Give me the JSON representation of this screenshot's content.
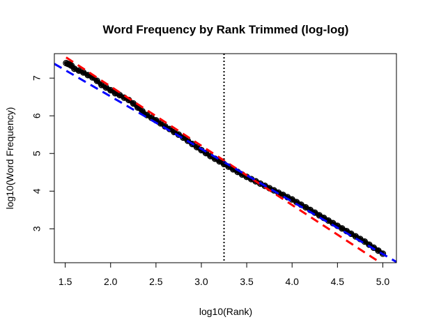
{
  "chart_data": {
    "type": "scatter",
    "title": "Word Frequency by Rank Trimmed (log-log)",
    "xlabel": "log10(Rank)",
    "ylabel": "log10(Word Frequency)",
    "xlim": [
      1.38,
      5.15
    ],
    "ylim": [
      2.1,
      7.65
    ],
    "log_scale": false,
    "grid": false,
    "legend": "none",
    "x_ticks": [
      1.5,
      2.0,
      2.5,
      3.0,
      3.5,
      4.0,
      4.5,
      5.0
    ],
    "x_tick_labels": [
      "1.5",
      "2.0",
      "2.5",
      "3.0",
      "3.5",
      "4.0",
      "4.5",
      "5.0"
    ],
    "y_ticks": [
      3,
      4,
      5,
      6,
      7
    ],
    "y_tick_labels": [
      "3",
      "4",
      "5",
      "6",
      "7"
    ],
    "series": [
      {
        "marker": "open-circle",
        "color": "#000000",
        "x": [
          1.51,
          1.53,
          1.55,
          1.57,
          1.6,
          1.65,
          1.7,
          1.75,
          1.8,
          1.85,
          1.9,
          1.95,
          2.0,
          2.05,
          2.1,
          2.15,
          2.2,
          2.25,
          2.3,
          2.35,
          2.4,
          2.45,
          2.5,
          2.55,
          2.6,
          2.65,
          2.7,
          2.75,
          2.8,
          2.85,
          2.9,
          2.95,
          3.0,
          3.05,
          3.1,
          3.15,
          3.2,
          3.25,
          3.3,
          3.35,
          3.4,
          3.45,
          3.5,
          3.55,
          3.6,
          3.65,
          3.7,
          3.75,
          3.8,
          3.85,
          3.9,
          3.95,
          4.0,
          4.05,
          4.1,
          4.15,
          4.2,
          4.25,
          4.3,
          4.35,
          4.4,
          4.45,
          4.5,
          4.55,
          4.6,
          4.65,
          4.7,
          4.75,
          4.8,
          4.85,
          4.9,
          4.95,
          5.0
        ],
        "y": [
          7.4,
          7.38,
          7.36,
          7.33,
          7.25,
          7.2,
          7.15,
          7.08,
          7.02,
          6.93,
          6.82,
          6.75,
          6.68,
          6.6,
          6.55,
          6.48,
          6.42,
          6.33,
          6.22,
          6.12,
          6.02,
          5.95,
          5.88,
          5.8,
          5.72,
          5.65,
          5.57,
          5.5,
          5.42,
          5.34,
          5.25,
          5.17,
          5.09,
          5.01,
          4.93,
          4.86,
          4.79,
          4.72,
          4.65,
          4.58,
          4.51,
          4.44,
          4.38,
          4.32,
          4.26,
          4.2,
          4.14,
          4.08,
          4.02,
          3.96,
          3.9,
          3.84,
          3.78,
          3.71,
          3.64,
          3.57,
          3.5,
          3.43,
          3.36,
          3.29,
          3.22,
          3.15,
          3.08,
          3.01,
          2.94,
          2.87,
          2.8,
          2.73,
          2.66,
          2.58,
          2.5,
          2.42,
          2.34
        ]
      }
    ],
    "lines": [
      {
        "style": "dashed",
        "color": "#ff0000",
        "x": [
          1.51,
          5.05
        ],
        "y": [
          7.55,
          1.98
        ]
      },
      {
        "style": "dashed",
        "color": "#0000ff",
        "x": [
          1.38,
          5.15
        ],
        "y": [
          7.38,
          2.12
        ]
      },
      {
        "style": "dotted",
        "color": "#000000",
        "orientation": "vertical",
        "x": 3.25
      }
    ]
  }
}
